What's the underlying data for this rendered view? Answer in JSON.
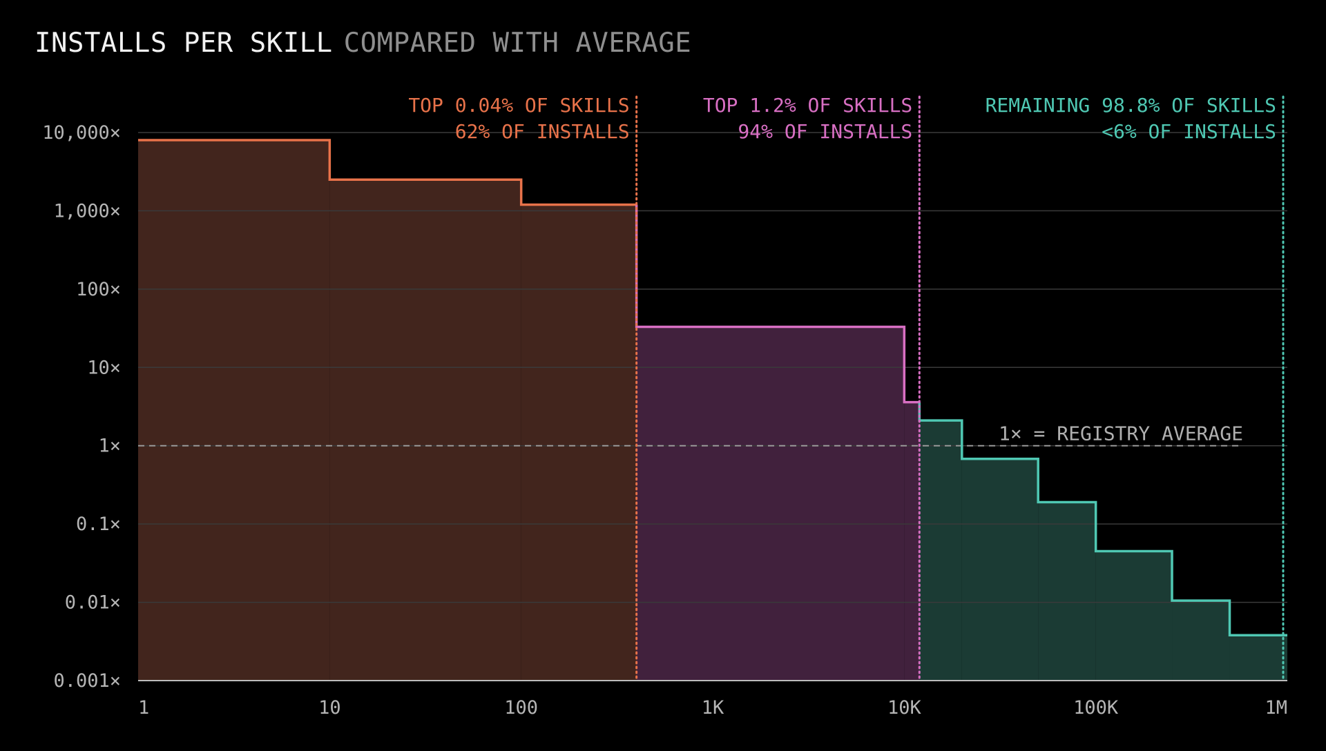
{
  "title": {
    "main": "INSTALLS PER SKILL",
    "sub": "COMPARED WITH AVERAGE"
  },
  "colors": {
    "background": "#000000",
    "grid": "#3a3a3a",
    "axis": "#bdbdbd",
    "orange_line": "#e8724a",
    "orange_fill": "#42251d",
    "pink_line": "#d86fc3",
    "pink_fill": "#41213d",
    "teal_line": "#4fc8b3",
    "teal_fill": "#1b3b34",
    "average_line": "#9a9a9a"
  },
  "chart_data": {
    "type": "area",
    "title": "INSTALLS PER SKILL COMPARED WITH AVERAGE",
    "x_scale": "log",
    "y_scale": "log",
    "xlim": [
      1,
      1000000
    ],
    "ylim": [
      0.001,
      10000
    ],
    "x_ticks": [
      {
        "value": 1,
        "label": "1"
      },
      {
        "value": 10,
        "label": "10"
      },
      {
        "value": 100,
        "label": "100"
      },
      {
        "value": 1000,
        "label": "1K"
      },
      {
        "value": 10000,
        "label": "10K"
      },
      {
        "value": 100000,
        "label": "100K"
      },
      {
        "value": 1000000,
        "label": "1M"
      }
    ],
    "y_ticks": [
      {
        "value": 10000,
        "label": "10,000×"
      },
      {
        "value": 1000,
        "label": "1,000×"
      },
      {
        "value": 100,
        "label": "100×"
      },
      {
        "value": 10,
        "label": "10×"
      },
      {
        "value": 1,
        "label": "1×"
      },
      {
        "value": 0.1,
        "label": "0.1×"
      },
      {
        "value": 0.01,
        "label": "0.01×"
      },
      {
        "value": 0.001,
        "label": "0.001×"
      }
    ],
    "grid": true,
    "reference_line": {
      "y": 1,
      "label": "1× = REGISTRY AVERAGE",
      "style": "dashed"
    },
    "series": [
      {
        "color_key": "orange",
        "x_range": [
          1,
          400
        ],
        "steps": [
          {
            "x_start": 1,
            "x_end": 10,
            "y": 8000
          },
          {
            "x_start": 10,
            "x_end": 100,
            "y": 2500
          },
          {
            "x_start": 100,
            "x_end": 400,
            "y": 1200
          }
        ]
      },
      {
        "color_key": "pink",
        "x_range": [
          400,
          12000
        ],
        "steps": [
          {
            "x_start": 400,
            "x_end": 10000,
            "y": 33
          },
          {
            "x_start": 10000,
            "x_end": 12000,
            "y": 3.6
          }
        ]
      },
      {
        "color_key": "teal",
        "x_range": [
          12000,
          1000000
        ],
        "steps": [
          {
            "x_start": 12000,
            "x_end": 20000,
            "y": 2.1
          },
          {
            "x_start": 20000,
            "x_end": 50000,
            "y": 0.68
          },
          {
            "x_start": 50000,
            "x_end": 100000,
            "y": 0.19
          },
          {
            "x_start": 100000,
            "x_end": 250000,
            "y": 0.045
          },
          {
            "x_start": 250000,
            "x_end": 500000,
            "y": 0.0105
          },
          {
            "x_start": 500000,
            "x_end": 1000000,
            "y": 0.0038
          }
        ]
      }
    ],
    "annotations": [
      {
        "x": 400,
        "color_key": "orange",
        "line1": "TOP 0.04% OF SKILLS",
        "line2": "62% OF INSTALLS"
      },
      {
        "x": 12000,
        "color_key": "pink",
        "line1": "TOP 1.2% OF SKILLS",
        "line2": "94% OF INSTALLS"
      },
      {
        "x": 1000000,
        "color_key": "teal",
        "line1": "REMAINING 98.8% OF SKILLS",
        "line2": "<6% OF INSTALLS"
      }
    ]
  }
}
